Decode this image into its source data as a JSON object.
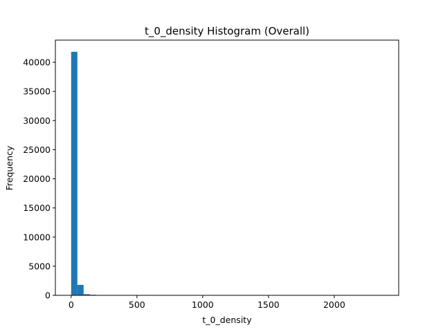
{
  "chart_data": {
    "type": "bar",
    "title": "t_0_density Histogram (Overall)",
    "xlabel": "t_0_density",
    "ylabel": "Frequency",
    "xlim": [
      -120,
      2490
    ],
    "ylim": [
      0,
      43800
    ],
    "xticks": [
      0,
      500,
      1000,
      1500,
      2000
    ],
    "xtick_labels": [
      "0",
      "500",
      "1000",
      "1500",
      "2000"
    ],
    "yticks": [
      0,
      5000,
      10000,
      15000,
      20000,
      25000,
      30000,
      35000,
      40000
    ],
    "ytick_labels": [
      "0",
      "5000",
      "10000",
      "15000",
      "20000",
      "25000",
      "30000",
      "35000",
      "40000"
    ],
    "bin_edges": [
      0,
      47.3,
      94.6,
      141.9,
      189.2,
      236.5,
      283.8,
      331.1,
      378.4
    ],
    "values": [
      41800,
      1800,
      200,
      100,
      60,
      40,
      30,
      20
    ],
    "bar_color": "#1f77b4",
    "grid": false,
    "legend": "none"
  }
}
